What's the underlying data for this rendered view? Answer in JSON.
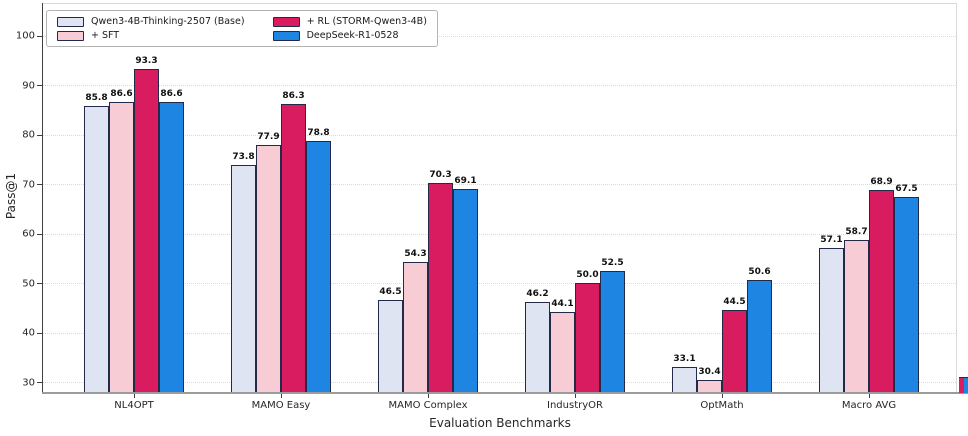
{
  "figure": {
    "background": "#ffffff"
  },
  "chart_data": {
    "type": "bar",
    "title": "",
    "xlabel": "Evaluation Benchmarks",
    "ylabel": "Pass@1",
    "ylim": [
      27.5,
      106
    ],
    "yticks": [
      30,
      40,
      50,
      60,
      70,
      80,
      90,
      100
    ],
    "grid": "horizontal-dotted",
    "legend_position": "upper-left",
    "legend_columns": 2,
    "categories": [
      "NL4OPT",
      "MAMO Easy",
      "MAMO Complex",
      "IndustryOR",
      "OptMath",
      "Macro AVG"
    ],
    "series": [
      {
        "name": "Qwen3-4B-Thinking-2507 (Base)",
        "color": "#dee4f2",
        "values": [
          85.8,
          73.8,
          46.5,
          46.2,
          33.1,
          57.1
        ]
      },
      {
        "name": "+ SFT",
        "color": "#f7ccd5",
        "values": [
          86.6,
          77.9,
          54.3,
          44.1,
          30.4,
          58.7
        ]
      },
      {
        "name": "+ RL (STORM-Qwen3-4B)",
        "color": "#d91c5f",
        "values": [
          93.3,
          86.3,
          70.3,
          50.0,
          44.5,
          68.9
        ]
      },
      {
        "name": "DeepSeek-R1-0528",
        "color": "#1e85e2",
        "values": [
          86.6,
          78.8,
          69.1,
          52.5,
          50.6,
          67.5
        ]
      }
    ],
    "bar_edge_color": "#232a49",
    "value_label_decimals": 1,
    "edge_fragment_colors": [
      "#d91c5f",
      "#1e85e2"
    ]
  }
}
